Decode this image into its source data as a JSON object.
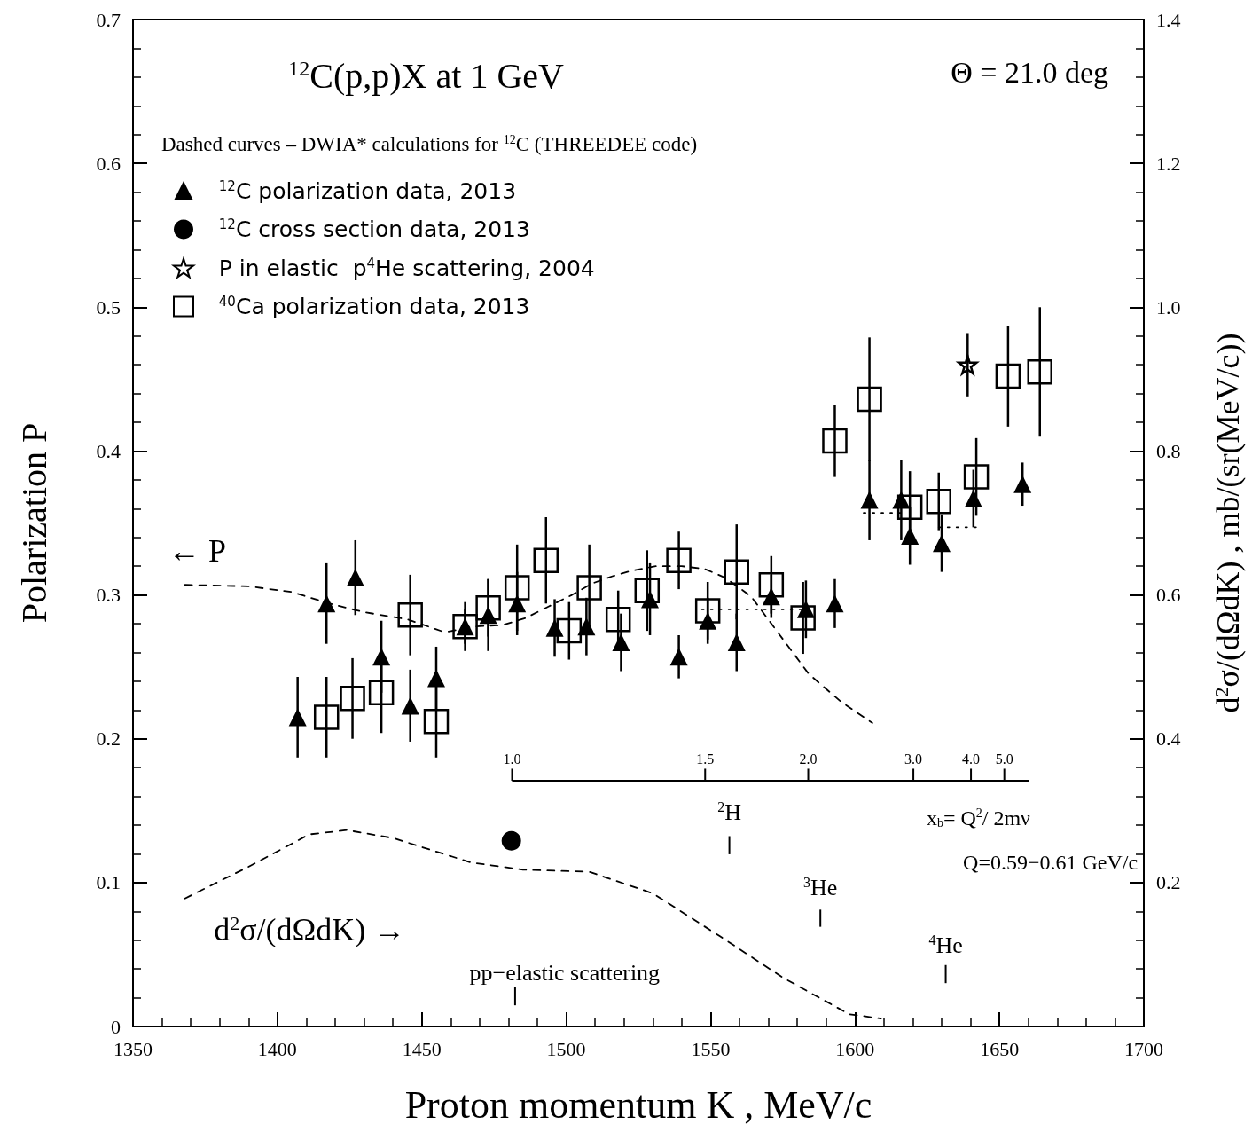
{
  "chart_data": {
    "type": "scatter",
    "title": "$^{12}$C(p,p)X at 1 GeV",
    "xlabel": "Proton momentum K , MeV/c",
    "ylabel": "Polarization P",
    "y2label": "d$^{2}$σ/(dΩdK) , mb/(sr(MeV/c))",
    "legend_title": "Dashed curves – DWIA* calculations for $^{12}$C (THREEDEE code)",
    "legend": "top left",
    "annotations": [
      "Θ = 21.0 deg",
      "← P",
      "d$^{2}$σ/(dΩdK) →",
      "x$_{b}$= Q$^{2}$/ 2mν",
      "Q=0.59−0.61 GeV/c",
      "$^{2}$H",
      "$^{3}$He",
      "$^{4}$He",
      "pp−elastic scattering",
      "1.0",
      "1.5",
      "2.0",
      "3.0",
      "4.0",
      "5.0"
    ],
    "xlim": [
      1350,
      1700
    ],
    "xticks": [
      1350,
      1400,
      1450,
      1500,
      1550,
      1600,
      1650,
      1700
    ],
    "ylim": [
      0,
      0.7
    ],
    "yticks": [
      0,
      0.1,
      0.2,
      0.3,
      0.4,
      0.5,
      0.6,
      0.7
    ],
    "y2lim": [
      0,
      1.4
    ],
    "y2ticks": [
      {
        "value": 0,
        "label": null
      },
      0.2,
      0.4,
      0.6,
      0.8,
      {
        "value": 1.0,
        "label": "1.0"
      },
      1.2,
      1.4
    ],
    "series": [
      {
        "name": "$^{12}$C polarization data, 2013",
        "marker": "triangle",
        "color": "#000000",
        "x": [
          1407,
          1417,
          1427,
          1436,
          1446,
          1455,
          1465,
          1473,
          1483,
          1496,
          1507,
          1519,
          1529,
          1539,
          1549,
          1559,
          1571,
          1583,
          1593,
          1605,
          1616,
          1619,
          1630,
          1641,
          1658
        ],
        "values": [
          0.215,
          0.294,
          0.312,
          0.257,
          0.223,
          0.242,
          0.278,
          0.286,
          0.294,
          0.277,
          0.278,
          0.267,
          0.297,
          0.257,
          0.282,
          0.267,
          0.299,
          0.29,
          0.294,
          0.366,
          0.366,
          0.341,
          0.336,
          0.367,
          0.377
        ],
        "errors": [
          0.028,
          0.028,
          0.026,
          0.025,
          0.025,
          0.022,
          0.017,
          0.025,
          0.022,
          0.02,
          0.02,
          0.02,
          0.025,
          0.015,
          0.016,
          0.02,
          0.015,
          0.02,
          0.017,
          0.028,
          0.028,
          0.02,
          0.02,
          0.02,
          0.015
        ]
      },
      {
        "name": "$^{12}$C cross section data, 2013",
        "marker": "circle",
        "color": "#000000",
        "axis": "y2",
        "x": [
          1481
        ],
        "values": [
          0.258
        ]
      },
      {
        "name": "P in elastic  p$^{4}$He scattering, 2004",
        "marker": "star",
        "color": "#000000",
        "x": [
          1639
        ],
        "values": [
          0.46
        ],
        "errors": [
          0.022
        ]
      },
      {
        "name": "$^{40}$Ca polarization data, 2013",
        "marker": "square",
        "color": "#000000",
        "x": [
          1417,
          1426,
          1436,
          1446,
          1455,
          1465,
          1473,
          1483,
          1493,
          1501,
          1508,
          1518,
          1528,
          1539,
          1549,
          1559,
          1571,
          1582,
          1593,
          1605,
          1619,
          1629,
          1642,
          1653,
          1664
        ],
        "values": [
          0.215,
          0.228,
          0.232,
          0.286,
          0.212,
          0.278,
          0.291,
          0.305,
          0.324,
          0.275,
          0.305,
          0.283,
          0.303,
          0.324,
          0.289,
          0.316,
          0.307,
          0.284,
          0.407,
          0.436,
          0.361,
          0.365,
          0.382,
          0.452,
          0.455
        ],
        "errors": [
          0.028,
          0.028,
          0.028,
          0.028,
          0.025,
          0.012,
          0.02,
          0.03,
          0.03,
          0.02,
          0.03,
          0.02,
          0.028,
          0.02,
          0.02,
          0.033,
          0.02,
          0.025,
          0.025,
          0.043,
          0.025,
          0.02,
          0.027,
          0.035,
          0.045
        ]
      },
      {
        "type": "line",
        "line_style": "dashed",
        "color": "#000000",
        "x": [
          1368,
          1390,
          1405,
          1418,
          1430,
          1445,
          1458,
          1468,
          1478,
          1486,
          1494,
          1502,
          1509,
          1516,
          1523,
          1531,
          1540,
          1548,
          1555,
          1564,
          1574,
          1584,
          1595,
          1606
        ],
        "values": [
          0.307,
          0.306,
          0.302,
          0.294,
          0.288,
          0.283,
          0.274,
          0.278,
          0.279,
          0.284,
          0.292,
          0.3,
          0.308,
          0.313,
          0.317,
          0.32,
          0.32,
          0.318,
          0.312,
          0.299,
          0.272,
          0.245,
          0.226,
          0.211
        ]
      },
      {
        "type": "line",
        "line_style": "dashed",
        "color": "#000000",
        "axis": "y2",
        "x": [
          1368,
          1390,
          1411,
          1424,
          1440,
          1467,
          1485,
          1508,
          1530,
          1553,
          1575,
          1598,
          1609
        ],
        "values": [
          0.178,
          0.222,
          0.267,
          0.273,
          0.262,
          0.228,
          0.218,
          0.215,
          0.185,
          0.126,
          0.068,
          0.017,
          0.011
        ]
      },
      {
        "type": "line",
        "line_style": "dotted",
        "color": "#000000",
        "x": [
          1547,
          1583,
          1593,
          1603,
          1616,
          1622,
          1629,
          1644
        ],
        "values": [
          0.29,
          0.29,
          null,
          0.357,
          0.357,
          null,
          0.347,
          0.347
        ]
      }
    ]
  }
}
